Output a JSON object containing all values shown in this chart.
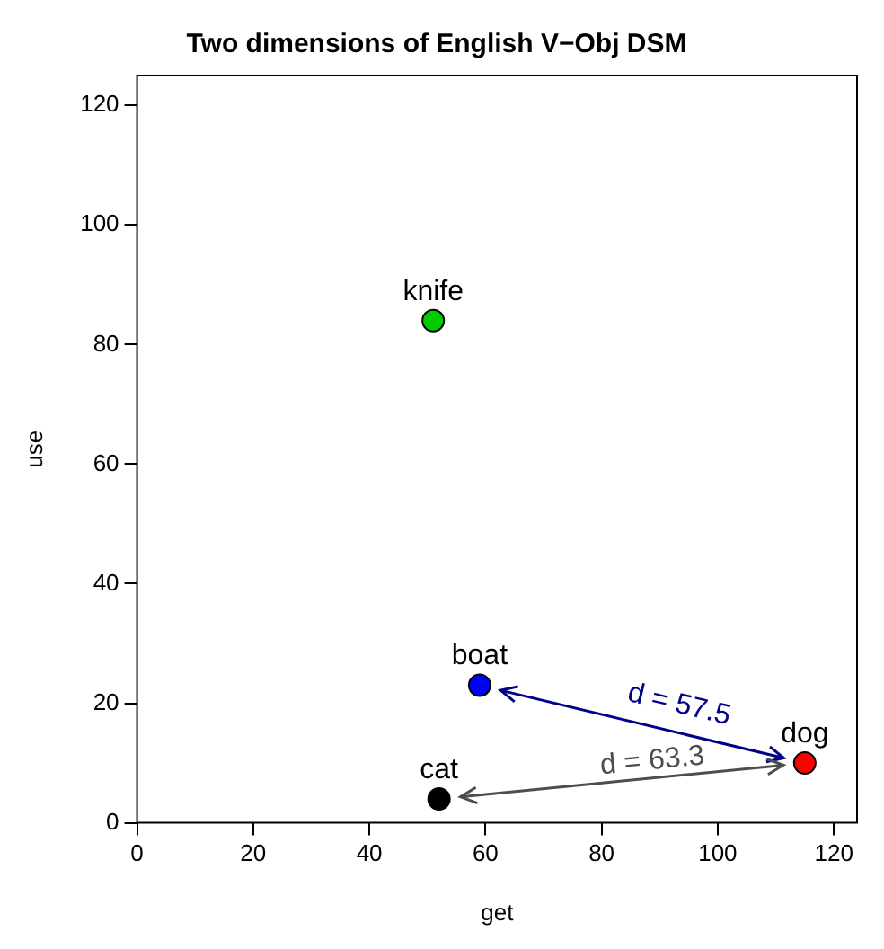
{
  "chart_data": {
    "type": "scatter",
    "title": "Two dimensions of English V−Obj DSM",
    "xlabel": "get",
    "ylabel": "use",
    "series": [
      {
        "name": "knife",
        "color": "#00cd00",
        "x": [
          51
        ],
        "values": [
          84
        ]
      },
      {
        "name": "boat",
        "color": "#0000ff",
        "x": [
          59
        ],
        "values": [
          23
        ]
      },
      {
        "name": "cat",
        "color": "#000000",
        "x": [
          52
        ],
        "values": [
          4
        ]
      },
      {
        "name": "dog",
        "color": "#ff0000",
        "x": [
          115
        ],
        "values": [
          10
        ]
      }
    ],
    "annotations": [
      "d = 57.5",
      "d = 63.3"
    ],
    "xlim": [
      0,
      124
    ],
    "ylim": [
      0,
      125
    ],
    "xticks": [
      0,
      20,
      40,
      60,
      80,
      100,
      120
    ],
    "yticks": [
      0,
      20,
      40,
      60,
      80,
      100,
      120
    ],
    "grid": false,
    "legend": false,
    "marker": "circle"
  }
}
